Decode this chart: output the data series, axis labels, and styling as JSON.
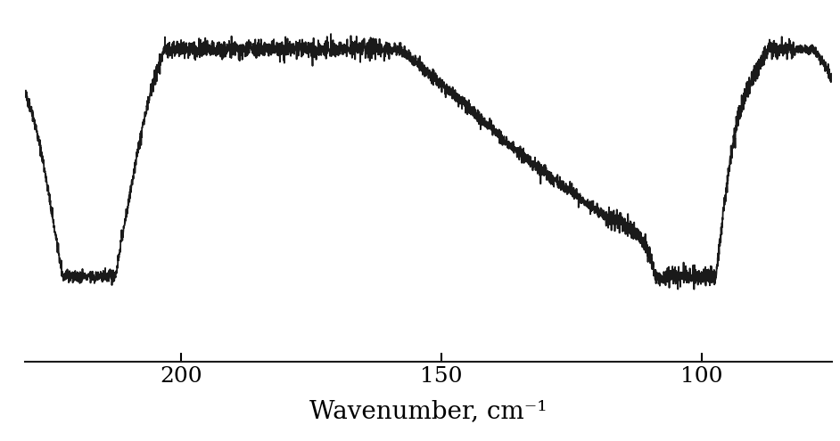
{
  "xlabel": "Wavenumber, cm⁻¹",
  "xlim": [
    230,
    75
  ],
  "xticks": [
    200,
    150,
    100
  ],
  "line_color": "#1a1a1a",
  "line_width": 1.3,
  "background_color": "#ffffff",
  "seed": 42
}
